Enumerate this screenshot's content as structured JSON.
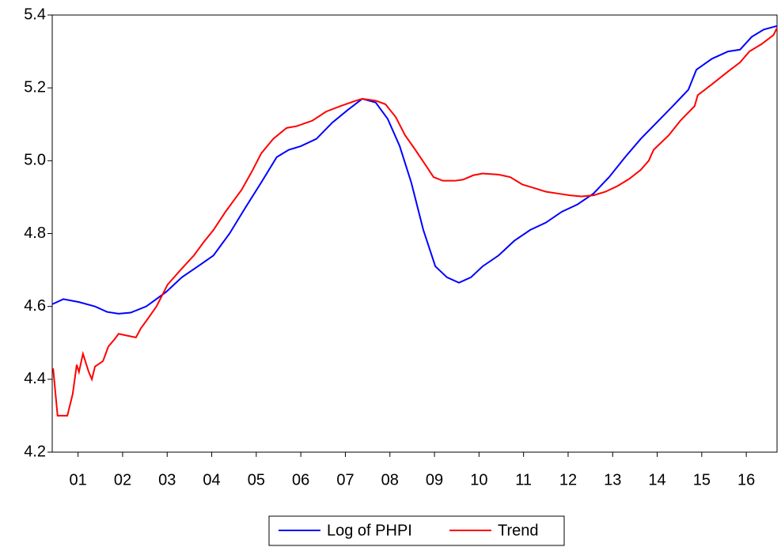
{
  "chart_data": {
    "type": "line",
    "xlim": [
      2000.92,
      2017.19
    ],
    "xticks": [
      {
        "value": 2001.5,
        "label": "01"
      },
      {
        "value": 2002.5,
        "label": "02"
      },
      {
        "value": 2003.5,
        "label": "03"
      },
      {
        "value": 2004.5,
        "label": "04"
      },
      {
        "value": 2005.5,
        "label": "05"
      },
      {
        "value": 2006.5,
        "label": "06"
      },
      {
        "value": 2007.5,
        "label": "07"
      },
      {
        "value": 2008.5,
        "label": "08"
      },
      {
        "value": 2009.5,
        "label": "09"
      },
      {
        "value": 2010.5,
        "label": "10"
      },
      {
        "value": 2011.5,
        "label": "11"
      },
      {
        "value": 2012.5,
        "label": "12"
      },
      {
        "value": 2013.5,
        "label": "13"
      },
      {
        "value": 2014.5,
        "label": "14"
      },
      {
        "value": 2015.5,
        "label": "15"
      },
      {
        "value": 2016.5,
        "label": "16"
      }
    ],
    "ylim": [
      4.2,
      5.4
    ],
    "yticks": [
      {
        "value": 4.2,
        "label": "4.2"
      },
      {
        "value": 4.4,
        "label": "4.4"
      },
      {
        "value": 4.6,
        "label": "4.6"
      },
      {
        "value": 4.8,
        "label": "4.8"
      },
      {
        "value": 5.0,
        "label": "5.0"
      },
      {
        "value": 5.2,
        "label": "5.2"
      },
      {
        "value": 5.4,
        "label": "5.4"
      }
    ],
    "legend": "bottom",
    "series": [
      {
        "name": "Log of PHPI",
        "color": "#0000ff",
        "x": [
          2000.92,
          2001.17,
          2001.52,
          2001.88,
          2002.15,
          2002.41,
          2002.68,
          2003.03,
          2003.48,
          2003.83,
          2004.19,
          2004.54,
          2004.9,
          2005.25,
          2005.61,
          2005.96,
          2006.23,
          2006.5,
          2006.85,
          2007.21,
          2007.56,
          2007.88,
          2008.18,
          2008.45,
          2008.72,
          2008.98,
          2009.25,
          2009.52,
          2009.78,
          2010.05,
          2010.32,
          2010.58,
          2010.94,
          2011.29,
          2011.65,
          2012.0,
          2012.36,
          2012.71,
          2013.07,
          2013.42,
          2013.78,
          2014.13,
          2014.49,
          2014.85,
          2015.2,
          2015.38,
          2015.73,
          2016.09,
          2016.36,
          2016.62,
          2016.89,
          2017.19
        ],
        "values": [
          4.606,
          4.62,
          4.612,
          4.6,
          4.585,
          4.58,
          4.583,
          4.6,
          4.64,
          4.68,
          4.71,
          4.74,
          4.8,
          4.87,
          4.94,
          5.01,
          5.03,
          5.04,
          5.06,
          5.105,
          5.14,
          5.17,
          5.16,
          5.115,
          5.04,
          4.94,
          4.81,
          4.71,
          4.68,
          4.665,
          4.68,
          4.71,
          4.74,
          4.78,
          4.81,
          4.83,
          4.86,
          4.88,
          4.91,
          4.955,
          5.01,
          5.06,
          5.105,
          5.15,
          5.195,
          5.25,
          5.28,
          5.3,
          5.305,
          5.34,
          5.36,
          5.37
        ]
      },
      {
        "name": "Trend",
        "color": "#ff0000",
        "x": [
          2000.94,
          2001.04,
          2001.26,
          2001.38,
          2001.47,
          2001.52,
          2001.61,
          2001.74,
          2001.81,
          2001.88,
          2002.06,
          2002.18,
          2002.32,
          2002.41,
          2002.59,
          2002.8,
          2002.91,
          2003.03,
          2003.26,
          2003.51,
          2003.8,
          2004.1,
          2004.31,
          2004.54,
          2004.81,
          2005.17,
          2005.4,
          2005.61,
          2005.88,
          2006.18,
          2006.41,
          2006.76,
          2007.07,
          2007.39,
          2007.74,
          2007.88,
          2008.18,
          2008.4,
          2008.63,
          2008.84,
          2009.07,
          2009.29,
          2009.48,
          2009.69,
          2009.96,
          2010.14,
          2010.37,
          2010.58,
          2010.94,
          2011.2,
          2011.47,
          2011.74,
          2012.0,
          2012.27,
          2012.54,
          2012.8,
          2013.07,
          2013.34,
          2013.6,
          2013.87,
          2014.13,
          2014.31,
          2014.42,
          2014.76,
          2015.02,
          2015.34,
          2015.41,
          2015.73,
          2016.09,
          2016.36,
          2016.57,
          2016.84,
          2017.11,
          2017.19
        ],
        "values": [
          4.43,
          4.3,
          4.3,
          4.36,
          4.44,
          4.42,
          4.47,
          4.42,
          4.4,
          4.435,
          4.45,
          4.49,
          4.51,
          4.525,
          4.52,
          4.515,
          4.54,
          4.56,
          4.6,
          4.66,
          4.7,
          4.74,
          4.775,
          4.81,
          4.86,
          4.92,
          4.97,
          5.02,
          5.06,
          5.09,
          5.095,
          5.11,
          5.135,
          5.15,
          5.165,
          5.17,
          5.165,
          5.155,
          5.12,
          5.07,
          5.03,
          4.99,
          4.955,
          4.945,
          4.945,
          4.948,
          4.96,
          4.965,
          4.962,
          4.955,
          4.935,
          4.925,
          4.915,
          4.91,
          4.905,
          4.902,
          4.905,
          4.915,
          4.93,
          4.95,
          4.975,
          5.0,
          5.03,
          5.07,
          5.11,
          5.15,
          5.18,
          5.21,
          5.245,
          5.27,
          5.3,
          5.32,
          5.345,
          5.365
        ]
      }
    ]
  }
}
